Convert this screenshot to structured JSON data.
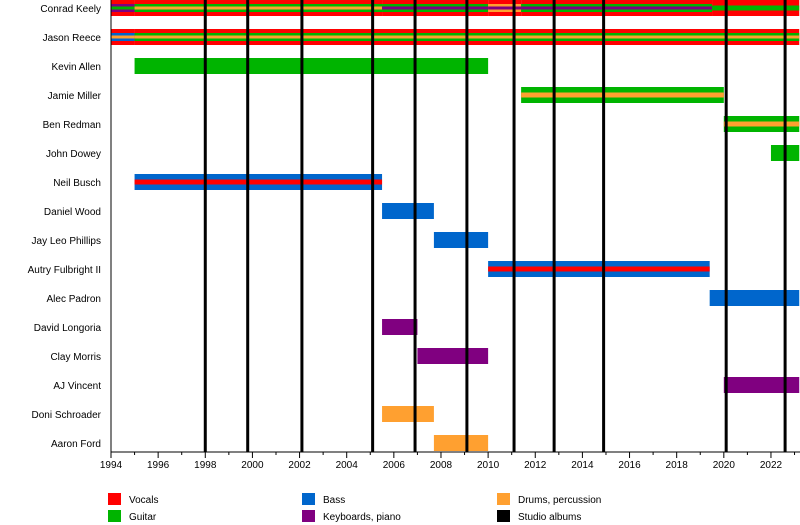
{
  "chart_data": {
    "type": "timeline",
    "xlim": [
      1994,
      2023.2
    ],
    "x_ticks": [
      "1994",
      "1996",
      "1998",
      "2000",
      "2002",
      "2004",
      "2006",
      "2008",
      "2010",
      "2012",
      "2014",
      "2016",
      "2018",
      "2020",
      "2022"
    ],
    "colors": {
      "Vocals": "#ff0000",
      "Guitar": "#00b400",
      "Bass": "#0066cc",
      "Keyboards, piano": "#800080",
      "Drums, percussion": "#ffa030",
      "Studio albums": "#000000"
    },
    "legend": [
      "Vocals",
      "Guitar",
      "Bass",
      "Keyboards, piano",
      "Drums, percussion",
      "Studio albums"
    ],
    "legend_position": "bottom",
    "studio_albums": [
      1998.0,
      1999.8,
      2002.1,
      2005.1,
      2006.9,
      2009.1,
      2011.1,
      2012.8,
      2014.9,
      2020.1,
      2022.6
    ],
    "members": [
      {
        "name": "Conrad Keely",
        "segments": [
          {
            "start": 1994,
            "end": 1995,
            "roles": [
              "Vocals",
              "Keyboards, piano",
              "Guitar"
            ]
          },
          {
            "start": 1995,
            "end": 2005.5,
            "roles": [
              "Vocals",
              "Guitar",
              "Drums, percussion"
            ]
          },
          {
            "start": 2005.5,
            "end": 2010,
            "roles": [
              "Vocals",
              "Guitar",
              "Keyboards, piano"
            ]
          },
          {
            "start": 2010,
            "end": 2011.4,
            "roles": [
              "Vocals",
              "Drums, percussion",
              "Keyboards, piano"
            ]
          },
          {
            "start": 2011.4,
            "end": 2019.5,
            "roles": [
              "Vocals",
              "Guitar",
              "Keyboards, piano"
            ]
          },
          {
            "start": 2019.5,
            "end": 2023.2,
            "roles": [
              "Vocals",
              "Guitar"
            ]
          }
        ]
      },
      {
        "name": "Jason Reece",
        "segments": [
          {
            "start": 1994,
            "end": 1995,
            "roles": [
              "Vocals",
              "Bass",
              "Drums, percussion"
            ]
          },
          {
            "start": 1995,
            "end": 2023.2,
            "roles": [
              "Vocals",
              "Guitar",
              "Drums, percussion"
            ]
          }
        ]
      },
      {
        "name": "Kevin Allen",
        "segments": [
          {
            "start": 1995,
            "end": 2010,
            "roles": [
              "Guitar"
            ]
          }
        ]
      },
      {
        "name": "Jamie Miller",
        "segments": [
          {
            "start": 2011.4,
            "end": 2020,
            "roles": [
              "Guitar",
              "Drums, percussion"
            ]
          }
        ]
      },
      {
        "name": "Ben Redman",
        "segments": [
          {
            "start": 2020,
            "end": 2023.2,
            "roles": [
              "Guitar",
              "Drums, percussion"
            ]
          }
        ]
      },
      {
        "name": "John Dowey",
        "segments": [
          {
            "start": 2022,
            "end": 2023.2,
            "roles": [
              "Guitar"
            ]
          }
        ]
      },
      {
        "name": "Neil Busch",
        "segments": [
          {
            "start": 1995,
            "end": 2005.5,
            "roles": [
              "Bass",
              "Vocals"
            ]
          }
        ]
      },
      {
        "name": "Daniel Wood",
        "segments": [
          {
            "start": 2005.5,
            "end": 2007.7,
            "roles": [
              "Bass"
            ]
          }
        ]
      },
      {
        "name": "Jay Leo Phillips",
        "segments": [
          {
            "start": 2007.7,
            "end": 2010,
            "roles": [
              "Bass"
            ]
          }
        ]
      },
      {
        "name": "Autry Fulbright II",
        "segments": [
          {
            "start": 2010,
            "end": 2019.4,
            "roles": [
              "Bass",
              "Vocals"
            ]
          }
        ]
      },
      {
        "name": "Alec Padron",
        "segments": [
          {
            "start": 2019.4,
            "end": 2023.2,
            "roles": [
              "Bass"
            ]
          }
        ]
      },
      {
        "name": "David Longoria",
        "segments": [
          {
            "start": 2005.5,
            "end": 2007,
            "roles": [
              "Keyboards, piano"
            ]
          }
        ]
      },
      {
        "name": "Clay Morris",
        "segments": [
          {
            "start": 2007,
            "end": 2010,
            "roles": [
              "Keyboards, piano"
            ]
          }
        ]
      },
      {
        "name": "AJ Vincent",
        "segments": [
          {
            "start": 2020,
            "end": 2023.2,
            "roles": [
              "Keyboards, piano"
            ]
          }
        ]
      },
      {
        "name": "Doni Schroader",
        "segments": [
          {
            "start": 2005.5,
            "end": 2007.7,
            "roles": [
              "Drums, percussion"
            ]
          }
        ]
      },
      {
        "name": "Aaron Ford",
        "segments": [
          {
            "start": 2007.7,
            "end": 2010,
            "roles": [
              "Drums, percussion"
            ]
          }
        ]
      }
    ]
  }
}
